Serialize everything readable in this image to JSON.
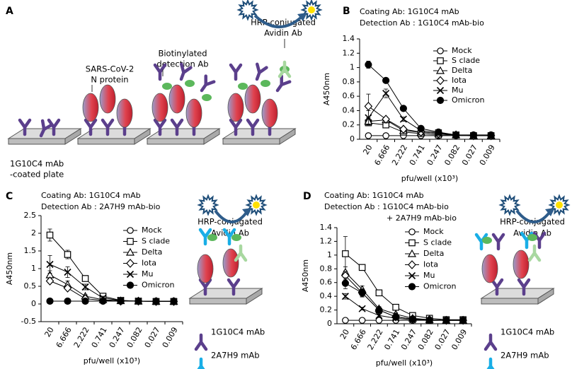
{
  "panel_a": {
    "label": "A",
    "plate_label": [
      "1G10C4 mAb",
      "-coated plate"
    ],
    "antigen_label": [
      "SARS-CoV-2",
      "N protein"
    ],
    "detection_label": [
      "Biotinylated",
      "detection Ab"
    ],
    "avidin_label": [
      "HRP-conjugated",
      "Avidin Ab"
    ]
  },
  "chart_data": [
    {
      "type": "line",
      "label": "B",
      "annotations": [
        "Coating Ab: 1G10C4 mAb",
        "Detection Ab : 1G10C4 mAb-bio"
      ],
      "ylabel": "A450nm",
      "xlabel": "pfu/well (x10³)",
      "categories": [
        "20",
        "6.666",
        "2.222",
        "0.741",
        "0.247",
        "0.082",
        "0.027",
        "0.009"
      ],
      "ylim": [
        0,
        1.4
      ],
      "yticks": [
        0,
        0.2,
        0.4,
        0.6,
        0.8,
        1,
        1.2,
        1.4
      ],
      "series": [
        {
          "name": "Mock",
          "color": "#000000",
          "marker": "circle-open",
          "values": [
            0.05,
            0.05,
            0.05,
            0.05,
            0.05,
            0.05,
            0.05,
            0.05
          ],
          "errors": [
            0.01,
            0.01,
            0.01,
            0.01,
            0.01,
            0.01,
            0.01,
            0.01
          ]
        },
        {
          "name": "S clade",
          "color": "#000000",
          "marker": "square-open",
          "values": [
            0.23,
            0.2,
            0.1,
            0.08,
            0.06,
            0.06,
            0.05,
            0.05
          ],
          "errors": [
            0.04,
            0.02,
            0.02,
            0.01,
            0.01,
            0.01,
            0.01,
            0.01
          ]
        },
        {
          "name": "Delta",
          "color": "#000000",
          "marker": "triangle-open",
          "values": [
            0.25,
            0.27,
            0.12,
            0.1,
            0.08,
            0.06,
            0.05,
            0.05
          ],
          "errors": [
            0.05,
            0.03,
            0.02,
            0.02,
            0.01,
            0.01,
            0.01,
            0.01
          ]
        },
        {
          "name": "Iota",
          "color": "#000000",
          "marker": "diamond-open",
          "values": [
            0.46,
            0.28,
            0.14,
            0.1,
            0.08,
            0.06,
            0.05,
            0.05
          ],
          "errors": [
            0.17,
            0.03,
            0.02,
            0.02,
            0.01,
            0.01,
            0.01,
            0.01
          ]
        },
        {
          "name": "Mu",
          "color": "#000000",
          "marker": "x",
          "values": [
            0.3,
            0.64,
            0.28,
            0.12,
            0.09,
            0.06,
            0.05,
            0.05
          ],
          "errors": [
            0.1,
            0.06,
            0.03,
            0.02,
            0.02,
            0.01,
            0.01,
            0.01
          ]
        },
        {
          "name": "Omicron",
          "color": "#000000",
          "marker": "circle-filled",
          "values": [
            1.04,
            0.82,
            0.43,
            0.15,
            0.1,
            0.06,
            0.06,
            0.06
          ],
          "errors": [
            0.05,
            0.02,
            0.02,
            0.02,
            0.01,
            0.01,
            0.01,
            0.01
          ]
        }
      ]
    },
    {
      "type": "line",
      "label": "C",
      "annotations": [
        "Coating Ab: 1G10C4 mAb",
        "Detection Ab : 2A7H9 mAb-bio"
      ],
      "ylabel": "A450nm",
      "xlabel": "pfu/well (x10³)",
      "categories": [
        "20",
        "6.666",
        "2.222",
        "0.741",
        "0.247",
        "0.082",
        "0.027",
        "0.009"
      ],
      "ylim": [
        -0.5,
        2.5
      ],
      "yticks": [
        -0.5,
        0,
        0.5,
        1,
        1.5,
        2,
        2.5
      ],
      "series": [
        {
          "name": "Mock",
          "color": "#000000",
          "marker": "circle-open",
          "values": [
            0.08,
            0.08,
            0.08,
            0.08,
            0.08,
            0.08,
            0.08,
            0.08
          ],
          "errors": [
            0.02,
            0.02,
            0.02,
            0.02,
            0.02,
            0.02,
            0.02,
            0.02
          ]
        },
        {
          "name": "S clade",
          "color": "#000000",
          "marker": "square-open",
          "values": [
            1.95,
            1.4,
            0.72,
            0.22,
            0.1,
            0.08,
            0.07,
            0.07
          ],
          "errors": [
            0.17,
            0.12,
            0.08,
            0.03,
            0.02,
            0.02,
            0.02,
            0.02
          ]
        },
        {
          "name": "Delta",
          "color": "#000000",
          "marker": "triangle-open",
          "values": [
            0.82,
            0.55,
            0.22,
            0.12,
            0.09,
            0.08,
            0.07,
            0.07
          ],
          "errors": [
            0.12,
            0.1,
            0.04,
            0.02,
            0.02,
            0.02,
            0.02,
            0.02
          ]
        },
        {
          "name": "Iota",
          "color": "#000000",
          "marker": "diamond-open",
          "values": [
            0.65,
            0.45,
            0.15,
            0.1,
            0.08,
            0.08,
            0.07,
            0.07
          ],
          "errors": [
            0.06,
            0.05,
            0.03,
            0.02,
            0.02,
            0.02,
            0.02,
            0.02
          ]
        },
        {
          "name": "Mu",
          "color": "#000000",
          "marker": "x",
          "values": [
            1.12,
            0.9,
            0.48,
            0.17,
            0.1,
            0.08,
            0.07,
            0.07
          ],
          "errors": [
            0.25,
            0.15,
            0.08,
            0.03,
            0.02,
            0.02,
            0.02,
            0.02
          ]
        },
        {
          "name": "Omicron",
          "color": "#000000",
          "marker": "circle-filled",
          "values": [
            0.08,
            0.08,
            0.08,
            0.08,
            0.08,
            0.08,
            0.08,
            0.08
          ],
          "errors": [
            0.02,
            0.02,
            0.02,
            0.02,
            0.02,
            0.02,
            0.02,
            0.02
          ]
        }
      ]
    },
    {
      "type": "line",
      "label": "D",
      "annotations": [
        "Coating Ab: 1G10C4 mAb",
        "Detection Ab : 1G10C4 mAb-bio",
        "+ 2A7H9 mAb-bio"
      ],
      "ylabel": "A450nm",
      "xlabel": "pfu/well (x10³)",
      "categories": [
        "20",
        "6.666",
        "2.222",
        "0.741",
        "0.247",
        "0.082",
        "0.027",
        "0.009"
      ],
      "ylim": [
        0,
        1.4
      ],
      "yticks": [
        0,
        0.2,
        0.4,
        0.6,
        0.8,
        1,
        1.2,
        1.4
      ],
      "series": [
        {
          "name": "Mock",
          "color": "#000000",
          "marker": "circle-open",
          "values": [
            0.05,
            0.05,
            0.05,
            0.05,
            0.05,
            0.05,
            0.05,
            0.05
          ],
          "errors": [
            0.01,
            0.01,
            0.01,
            0.01,
            0.01,
            0.01,
            0.01,
            0.01
          ]
        },
        {
          "name": "S clade",
          "color": "#000000",
          "marker": "square-open",
          "values": [
            1.02,
            0.82,
            0.45,
            0.24,
            0.12,
            0.08,
            0.06,
            0.06
          ],
          "errors": [
            0.25,
            0.02,
            0.03,
            0.02,
            0.02,
            0.01,
            0.01,
            0.01
          ]
        },
        {
          "name": "Delta",
          "color": "#000000",
          "marker": "triangle-open",
          "values": [
            0.75,
            0.5,
            0.22,
            0.14,
            0.08,
            0.06,
            0.05,
            0.05
          ],
          "errors": [
            0.08,
            0.05,
            0.03,
            0.02,
            0.01,
            0.01,
            0.01,
            0.01
          ]
        },
        {
          "name": "Iota",
          "color": "#000000",
          "marker": "diamond-open",
          "values": [
            0.7,
            0.45,
            0.2,
            0.1,
            0.07,
            0.06,
            0.05,
            0.05
          ],
          "errors": [
            0.06,
            0.05,
            0.03,
            0.02,
            0.01,
            0.01,
            0.01,
            0.01
          ]
        },
        {
          "name": "Mu",
          "color": "#000000",
          "marker": "x",
          "values": [
            0.4,
            0.22,
            0.12,
            0.08,
            0.06,
            0.05,
            0.05,
            0.05
          ],
          "errors": [
            0.04,
            0.02,
            0.02,
            0.01,
            0.01,
            0.01,
            0.01,
            0.01
          ]
        },
        {
          "name": "Omicron",
          "color": "#000000",
          "marker": "circle-filled",
          "values": [
            0.59,
            0.45,
            0.2,
            0.1,
            0.07,
            0.05,
            0.05,
            0.05
          ],
          "errors": [
            0.08,
            0.06,
            0.03,
            0.02,
            0.01,
            0.01,
            0.01,
            0.01
          ]
        }
      ]
    }
  ],
  "diagram_c": {
    "avidin_label": [
      "HRP-conjugated",
      "Avidin Ab"
    ],
    "legend": [
      "1G10C4 mAb",
      "2A7H9 mAb"
    ]
  },
  "diagram_d": {
    "avidin_label": [
      "HRP-conjugated",
      "Avidin Ab"
    ],
    "legend": [
      "1G10C4 mAb",
      "2A7H9 mAb"
    ]
  }
}
